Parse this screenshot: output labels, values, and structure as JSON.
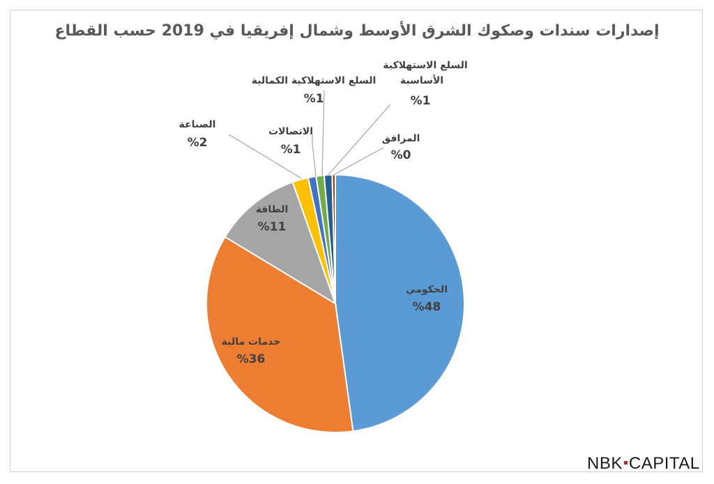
{
  "chart_data": {
    "type": "pie",
    "title": "إصدارات سندات وصكوك الشرق الأوسط وشمال إفريقيا في 2019 حسب القطاع",
    "start_angle_deg": 0,
    "direction": "clockwise",
    "slices": [
      {
        "label": "الحكومي",
        "value": 48,
        "value_label": "%48",
        "color": "#5b9bd5",
        "label_position": "inside"
      },
      {
        "label": "خدمات مالية",
        "value": 36,
        "value_label": "%36",
        "color": "#ed7d31",
        "label_position": "inside"
      },
      {
        "label": "الطاقة",
        "value": 11,
        "value_label": "%11",
        "color": "#a5a5a5",
        "label_position": "inside"
      },
      {
        "label": "الصناعة",
        "value": 2,
        "value_label": "%2",
        "color": "#ffc000",
        "label_position": "callout"
      },
      {
        "label": "الاتصالات",
        "value": 1,
        "value_label": "%1",
        "color": "#4472c4",
        "label_position": "callout"
      },
      {
        "label": "السلع الاستهلاكية الكمالية",
        "value": 1,
        "value_label": "%1",
        "color": "#70ad47",
        "label_position": "callout"
      },
      {
        "label": "السلع الاستهلاكية الأساسية",
        "value": 1,
        "value_label": "%1",
        "color": "#255e91",
        "label_position": "callout"
      },
      {
        "label": "المرافق",
        "value": 0.4,
        "value_label": "%0",
        "color": "#9e480e",
        "label_position": "callout"
      }
    ]
  },
  "brand": {
    "left": "NBK",
    "right": "CAPITAL",
    "dot_color": "#b3272c"
  }
}
